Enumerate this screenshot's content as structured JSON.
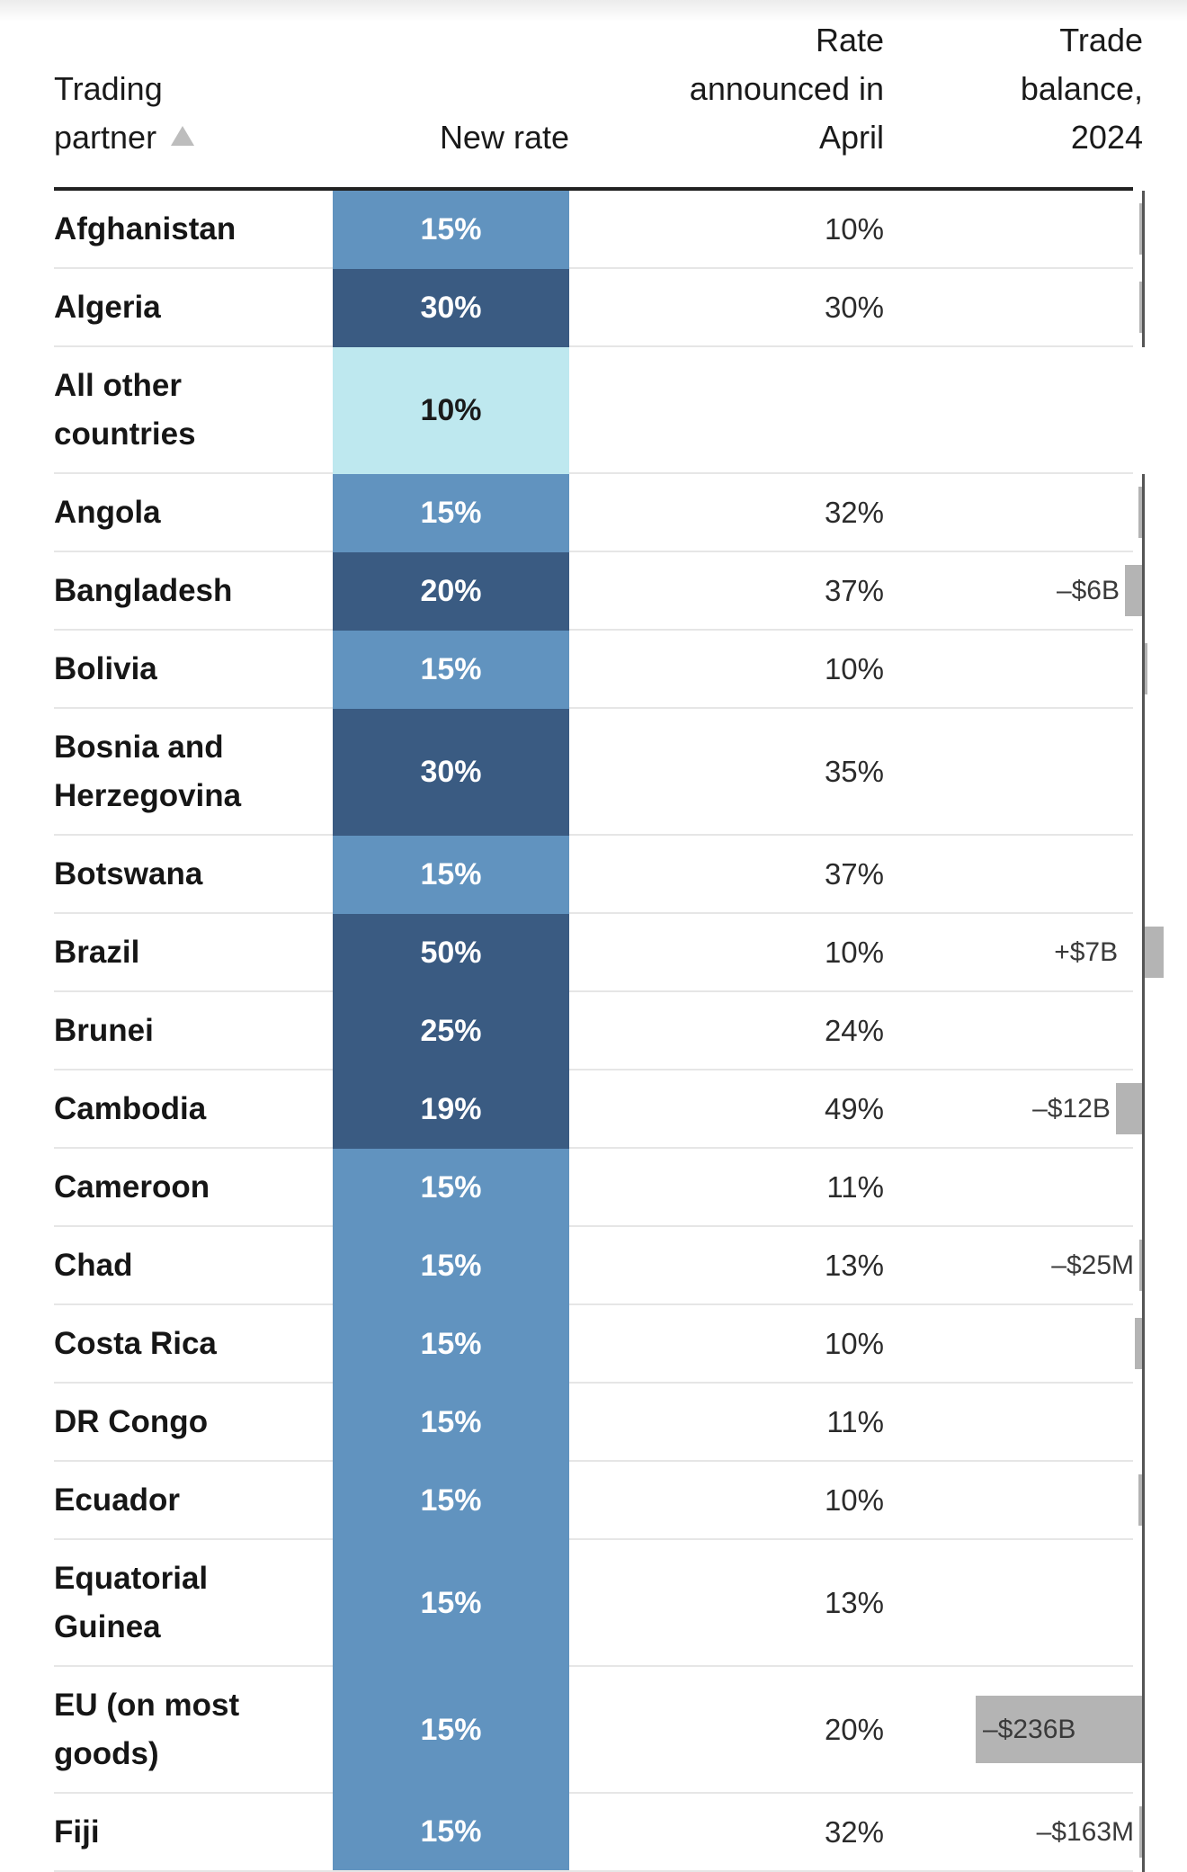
{
  "header": {
    "partner": "Trading\npartner",
    "new_rate": "New rate",
    "april": "Rate\nannounced in\nApril",
    "trade": "Trade\nbalance,\n2024"
  },
  "colors": {
    "low": "#bee8ef",
    "medium": "#6193bf",
    "high": "#3a5b82",
    "trade_bar": "#b4b4b4",
    "axis": "#555555"
  },
  "chart_data": {
    "type": "table",
    "columns": [
      "Trading partner",
      "New rate",
      "Rate announced in April",
      "Trade balance, 2024"
    ],
    "rows": [
      {
        "partner": "Afghanistan",
        "new_rate": "15%",
        "april_rate": "10%",
        "trade_label": "",
        "trade_value_b": -0.01
      },
      {
        "partner": "Algeria",
        "new_rate": "30%",
        "april_rate": "30%",
        "trade_label": "",
        "trade_value_b": -0.01
      },
      {
        "partner": "All other countries",
        "new_rate": "10%",
        "april_rate": "",
        "trade_label": "",
        "trade_value_b": null
      },
      {
        "partner": "Angola",
        "new_rate": "15%",
        "april_rate": "32%",
        "trade_label": "",
        "trade_value_b": -0.5
      },
      {
        "partner": "Bangladesh",
        "new_rate": "20%",
        "april_rate": "37%",
        "trade_label": "–$6B",
        "trade_value_b": -6
      },
      {
        "partner": "Bolivia",
        "new_rate": "15%",
        "april_rate": "10%",
        "trade_label": "",
        "trade_value_b": 0.01
      },
      {
        "partner": "Bosnia and Herzegovina",
        "new_rate": "30%",
        "april_rate": "35%",
        "trade_label": "",
        "trade_value_b": 0
      },
      {
        "partner": "Botswana",
        "new_rate": "15%",
        "april_rate": "37%",
        "trade_label": "",
        "trade_value_b": 0
      },
      {
        "partner": "Brazil",
        "new_rate": "50%",
        "april_rate": "10%",
        "trade_label": "+$7B",
        "trade_value_b": 7
      },
      {
        "partner": "Brunei",
        "new_rate": "25%",
        "april_rate": "24%",
        "trade_label": "",
        "trade_value_b": 0
      },
      {
        "partner": "Cambodia",
        "new_rate": "19%",
        "april_rate": "49%",
        "trade_label": "–$12B",
        "trade_value_b": -12
      },
      {
        "partner": "Cameroon",
        "new_rate": "15%",
        "april_rate": "11%",
        "trade_label": "",
        "trade_value_b": 0
      },
      {
        "partner": "Chad",
        "new_rate": "15%",
        "april_rate": "13%",
        "trade_label": "–$25M",
        "trade_value_b": -0.025
      },
      {
        "partner": "Costa Rica",
        "new_rate": "15%",
        "april_rate": "10%",
        "trade_label": "",
        "trade_value_b": -1.5
      },
      {
        "partner": "DR Congo",
        "new_rate": "15%",
        "april_rate": "11%",
        "trade_label": "",
        "trade_value_b": 0
      },
      {
        "partner": "Ecuador",
        "new_rate": "15%",
        "april_rate": "10%",
        "trade_label": "",
        "trade_value_b": -0.5
      },
      {
        "partner": "Equatorial Guinea",
        "new_rate": "15%",
        "april_rate": "13%",
        "trade_label": "",
        "trade_value_b": 0
      },
      {
        "partner": "EU (on most goods)",
        "new_rate": "15%",
        "april_rate": "20%",
        "trade_label": "–$236B",
        "trade_value_b": -236
      },
      {
        "partner": "Fiji",
        "new_rate": "15%",
        "april_rate": "32%",
        "trade_label": "–$163M",
        "trade_value_b": -0.163
      }
    ]
  }
}
